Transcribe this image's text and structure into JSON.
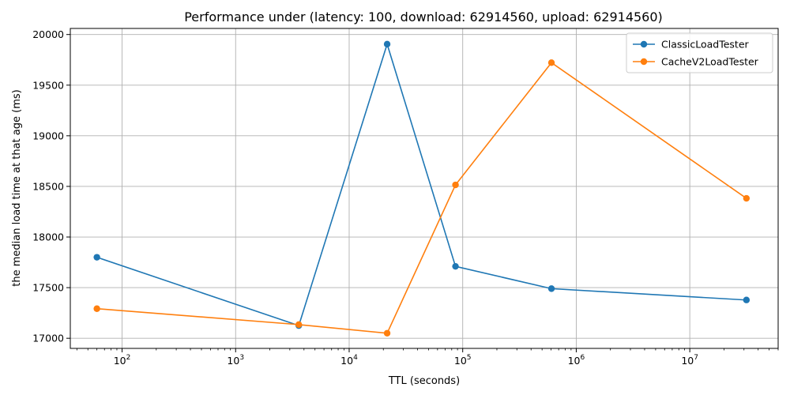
{
  "chart_data": {
    "type": "line",
    "title": "Performance under (latency: 100, download: 62914560, upload: 62914560)",
    "xlabel": "TTL (seconds)",
    "ylabel": "the median load time at that age (ms)",
    "xscale": "log",
    "xlim": [
      35,
      60000000
    ],
    "ylim": [
      16900,
      20060
    ],
    "x_major_ticks": [
      100,
      1000,
      10000,
      100000,
      1000000,
      10000000
    ],
    "x_tick_labels": [
      {
        "base": "10",
        "exp": "2"
      },
      {
        "base": "10",
        "exp": "3"
      },
      {
        "base": "10",
        "exp": "4"
      },
      {
        "base": "10",
        "exp": "5"
      },
      {
        "base": "10",
        "exp": "6"
      },
      {
        "base": "10",
        "exp": "7"
      }
    ],
    "y_ticks": [
      17000,
      17500,
      18000,
      18500,
      19000,
      19500,
      20000
    ],
    "y_tick_labels": [
      "17000",
      "17500",
      "18000",
      "18500",
      "19000",
      "19500",
      "20000"
    ],
    "grid": true,
    "legend_position": "top-right",
    "x": [
      60,
      3600,
      21600,
      86400,
      604800,
      31536000
    ],
    "series": [
      {
        "name": "ClassicLoadTester",
        "color": "#1f77b4",
        "values": [
          17800,
          17125,
          19905,
          17710,
          17490,
          17378
        ]
      },
      {
        "name": "CacheV2LoadTester",
        "color": "#ff7f0e",
        "values": [
          17292,
          17135,
          17050,
          18515,
          19722,
          18382
        ]
      }
    ]
  }
}
